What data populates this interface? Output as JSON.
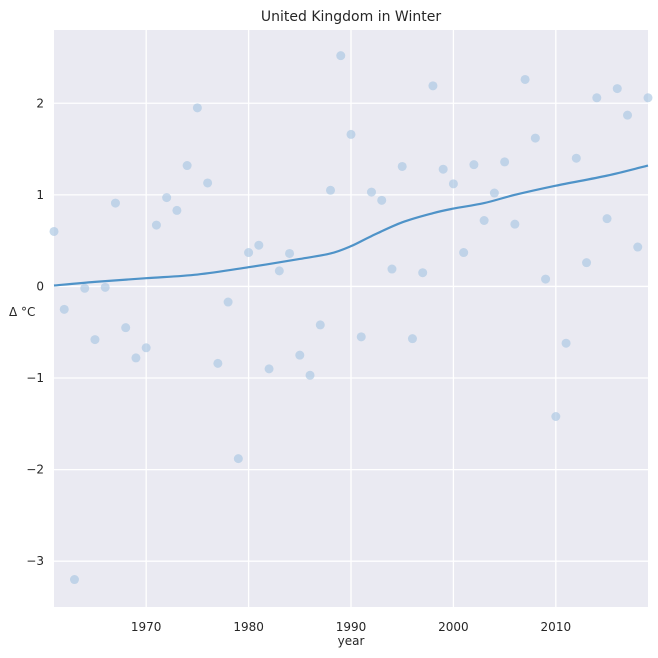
{
  "chart_data": {
    "type": "scatter",
    "title": "United Kingdom in Winter",
    "xlabel": "year",
    "ylabel": "Δ °C",
    "xlim": [
      1961,
      2019
    ],
    "ylim": [
      -3.5,
      2.8
    ],
    "x_ticks": [
      1970,
      1980,
      1990,
      2000,
      2010
    ],
    "y_ticks": [
      -3,
      -2,
      -1,
      0,
      1,
      2
    ],
    "grid": true,
    "colors": {
      "background": "#eaeaf2",
      "grid": "#ffffff",
      "points": "#a9c6e2",
      "trend": "#4f93c8"
    },
    "series": [
      {
        "type": "scatter",
        "points": [
          [
            1961,
            0.6
          ],
          [
            1962,
            -0.25
          ],
          [
            1963,
            -3.2
          ],
          [
            1964,
            -0.02
          ],
          [
            1965,
            -0.58
          ],
          [
            1966,
            -0.01
          ],
          [
            1967,
            0.91
          ],
          [
            1968,
            -0.45
          ],
          [
            1969,
            -0.78
          ],
          [
            1970,
            -0.67
          ],
          [
            1971,
            0.67
          ],
          [
            1972,
            0.97
          ],
          [
            1973,
            0.83
          ],
          [
            1974,
            1.32
          ],
          [
            1975,
            1.95
          ],
          [
            1976,
            1.13
          ],
          [
            1977,
            -0.84
          ],
          [
            1978,
            -0.17
          ],
          [
            1979,
            -1.88
          ],
          [
            1980,
            0.37
          ],
          [
            1981,
            0.45
          ],
          [
            1982,
            -0.9
          ],
          [
            1983,
            0.17
          ],
          [
            1984,
            0.36
          ],
          [
            1985,
            -0.75
          ],
          [
            1986,
            -0.97
          ],
          [
            1987,
            -0.42
          ],
          [
            1988,
            1.05
          ],
          [
            1989,
            2.52
          ],
          [
            1990,
            1.66
          ],
          [
            1991,
            -0.55
          ],
          [
            1992,
            1.03
          ],
          [
            1993,
            0.94
          ],
          [
            1994,
            0.19
          ],
          [
            1995,
            1.31
          ],
          [
            1996,
            -0.57
          ],
          [
            1997,
            0.15
          ],
          [
            1998,
            2.19
          ],
          [
            1999,
            1.28
          ],
          [
            2000,
            1.12
          ],
          [
            2001,
            0.37
          ],
          [
            2002,
            1.33
          ],
          [
            2003,
            0.72
          ],
          [
            2004,
            1.02
          ],
          [
            2005,
            1.36
          ],
          [
            2006,
            0.68
          ],
          [
            2007,
            2.26
          ],
          [
            2008,
            1.62
          ],
          [
            2009,
            0.08
          ],
          [
            2010,
            -1.42
          ],
          [
            2011,
            -0.62
          ],
          [
            2012,
            1.4
          ],
          [
            2013,
            0.26
          ],
          [
            2014,
            2.06
          ],
          [
            2015,
            0.74
          ],
          [
            2016,
            2.16
          ],
          [
            2017,
            1.87
          ],
          [
            2018,
            0.43
          ],
          [
            2019,
            2.06
          ]
        ]
      },
      {
        "type": "line",
        "points": [
          [
            1961,
            0.01
          ],
          [
            1965,
            0.05
          ],
          [
            1970,
            0.09
          ],
          [
            1975,
            0.13
          ],
          [
            1980,
            0.21
          ],
          [
            1985,
            0.3
          ],
          [
            1988,
            0.36
          ],
          [
            1990,
            0.44
          ],
          [
            1992,
            0.55
          ],
          [
            1995,
            0.7
          ],
          [
            1998,
            0.8
          ],
          [
            2000,
            0.85
          ],
          [
            2003,
            0.91
          ],
          [
            2006,
            1.0
          ],
          [
            2010,
            1.1
          ],
          [
            2015,
            1.21
          ],
          [
            2019,
            1.32
          ]
        ]
      }
    ]
  }
}
